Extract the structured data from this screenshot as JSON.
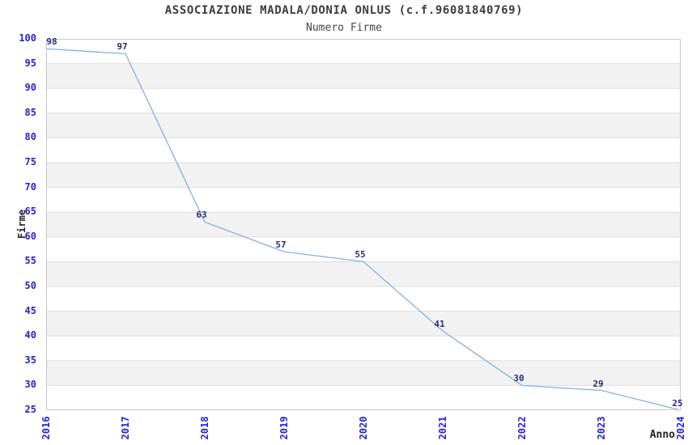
{
  "chart_data": {
    "type": "line",
    "title": "ASSOCIAZIONE MADALA/DONIA ONLUS (c.f.96081840769)",
    "subtitle": "Numero Firme",
    "x": [
      "2016",
      "2017",
      "2018",
      "2019",
      "2020",
      "2021",
      "2022",
      "2023",
      "2024"
    ],
    "values": [
      98,
      97,
      63,
      57,
      55,
      41,
      30,
      29,
      25
    ],
    "xlabel": "Anno",
    "ylabel": "Firme",
    "ylim": [
      25,
      100
    ],
    "ytick_step": 5,
    "grid": true,
    "legend": false,
    "point_labels": [
      "98",
      "97",
      "63",
      "57",
      "55",
      "41",
      "30",
      "29",
      "25"
    ],
    "colors": {
      "line": "#82b1e2",
      "tick_labels": "#2424d4",
      "point_labels": "#2b2b7e",
      "band": "#f2f2f2",
      "gridline": "#dedede",
      "border": "#c8c8c8",
      "title": "#3d3d3d"
    }
  }
}
